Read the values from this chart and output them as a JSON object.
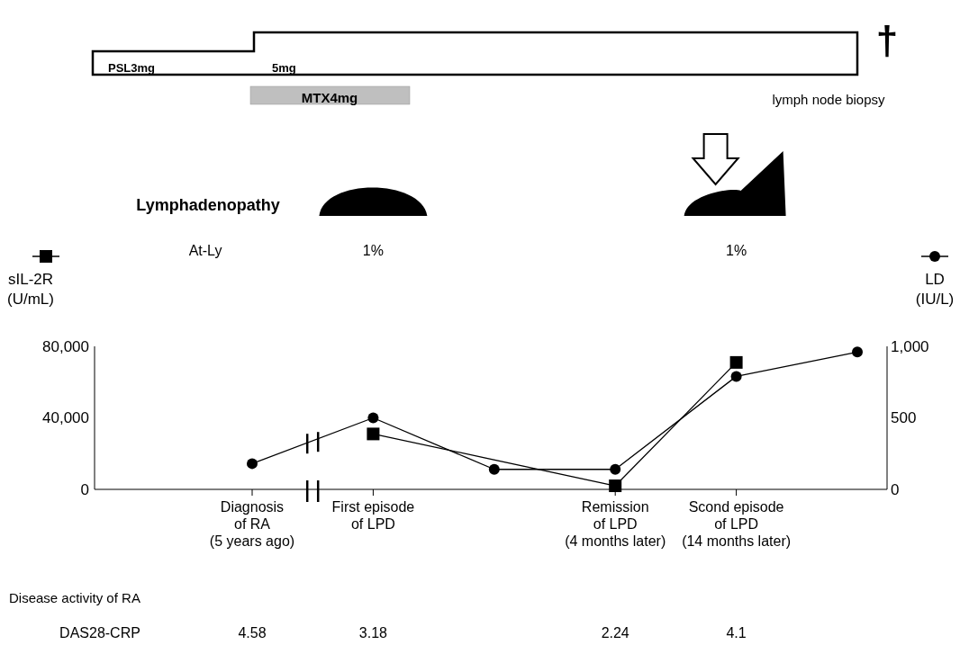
{
  "chart_data": {
    "type": "line",
    "categories": [
      "Diagnosis\nof  RA\n(5 years ago)",
      "First episode\nof LPD",
      null,
      "Remission\nof LPD\n(4 months later)",
      "Scond episode\nof LPD\n(14 months later)",
      null
    ],
    "series": [
      {
        "color": "#000000",
        "marker": "square",
        "values": [
          null,
          31000,
          null,
          2000,
          71000,
          null
        ]
      },
      {
        "color": "#000000",
        "marker": "circle",
        "axis": "y2",
        "values": [
          180,
          500,
          140,
          140,
          790,
          960
        ]
      }
    ],
    "ylabel": "sIL-2R\n(U/mL)",
    "y2label": "LD\n(IU/L)",
    "ylim": [
      0,
      80000
    ],
    "yticks": [
      {
        "value": 0,
        "label": "0"
      },
      {
        "value": 40000,
        "label": "40,000"
      },
      {
        "value": 80000,
        "label": "80,000"
      }
    ],
    "y2lim": [
      0,
      1000
    ],
    "y2ticks": [
      {
        "value": 0,
        "label": "0"
      },
      {
        "value": 500,
        "label": "500"
      },
      {
        "value": 1000,
        "label": "1,000"
      }
    ],
    "legend": false,
    "grid": false,
    "annotations": [
      "PSL3mg",
      "5mg",
      "MTX4mg",
      "†",
      "lymph node biopsy",
      "Lymphadenopathy",
      "At-Ly",
      "1%",
      "1%",
      "Disease activity of RA",
      "DAS28-CRP",
      "4.58",
      "3.18",
      "2.24",
      "4.1"
    ]
  }
}
